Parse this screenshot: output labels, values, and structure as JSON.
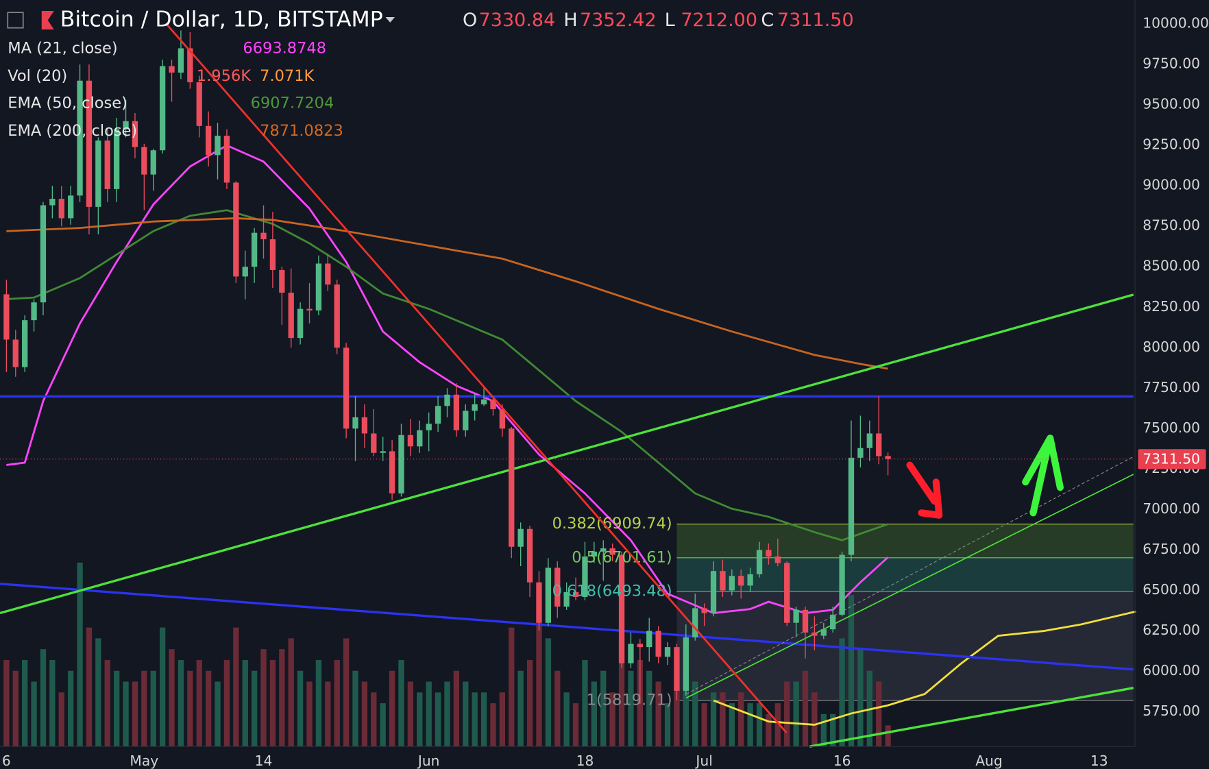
{
  "header": {
    "title": "Bitcoin / Dollar, 1D, BITSTAMP",
    "ohlc": [
      {
        "key": "O",
        "value": "7330.84"
      },
      {
        "key": "H",
        "value": "7352.42"
      },
      {
        "key": "L",
        "value": "7212.00"
      },
      {
        "key": "C",
        "value": "7311.50"
      }
    ]
  },
  "indicators": [
    {
      "name": "MA (21, close)",
      "values": [
        "6693.8748"
      ],
      "colors": [
        "#ff44ff"
      ]
    },
    {
      "name": "Vol (20)",
      "values": [
        "1.956K",
        "7.071K"
      ],
      "colors": [
        "#ff5a5a",
        "#ff9d3c"
      ]
    },
    {
      "name": "EMA (50, close)",
      "values": [
        "6907.7204"
      ],
      "colors": [
        "#4d9a3a"
      ]
    },
    {
      "name": "EMA (200, close)",
      "values": [
        "7871.0823"
      ],
      "colors": [
        "#d2691e"
      ]
    }
  ],
  "chart_data": {
    "type": "candlestick",
    "xlim": [
      -0.7,
      122.9
    ],
    "ylim": [
      5535.6,
      10147.7
    ],
    "volume_ylim": [
      0,
      69
    ],
    "xticks": [
      {
        "value": 0,
        "label": "6"
      },
      {
        "value": 15,
        "label": "May"
      },
      {
        "value": 28,
        "label": "14"
      },
      {
        "value": 46,
        "label": "Jun"
      },
      {
        "value": 63,
        "label": "18"
      },
      {
        "value": 76,
        "label": "Jul"
      },
      {
        "value": 91,
        "label": "16"
      },
      {
        "value": 107,
        "label": "Aug"
      },
      {
        "value": 119,
        "label": "13"
      }
    ],
    "yticks": [
      {
        "value": 10000,
        "label": "10000.00"
      },
      {
        "value": 9750,
        "label": "9750.00"
      },
      {
        "value": 9500,
        "label": "9500.00"
      },
      {
        "value": 9250,
        "label": "9250.00"
      },
      {
        "value": 9000,
        "label": "9000.00"
      },
      {
        "value": 8750,
        "label": "8750.00"
      },
      {
        "value": 8500,
        "label": "8500.00"
      },
      {
        "value": 8250,
        "label": "8250.00"
      },
      {
        "value": 8000,
        "label": "8000.00"
      },
      {
        "value": 7750,
        "label": "7750.00"
      },
      {
        "value": 7500,
        "label": "7500.00"
      },
      {
        "value": 7250,
        "label": "7250.00"
      },
      {
        "value": 7000,
        "label": "7000.00"
      },
      {
        "value": 6750,
        "label": "6750.00"
      },
      {
        "value": 6500,
        "label": "6500.00"
      },
      {
        "value": 6250,
        "label": "6250.00"
      },
      {
        "value": 6000,
        "label": "6000.00"
      },
      {
        "value": 5750,
        "label": "5750.00"
      }
    ],
    "grid": true,
    "up_color": "#53b987",
    "down_color": "#eb4d5c",
    "vol_up_color": "#1f5b4d",
    "vol_down_color": "#6a2b37",
    "last_price": {
      "value": 7311.5,
      "label": "7311.50"
    },
    "candles": [
      [
        8330,
        8420,
        7850,
        8050
      ],
      [
        8050,
        8110,
        7820,
        7880
      ],
      [
        7880,
        8200,
        7850,
        8170
      ],
      [
        8170,
        8300,
        8100,
        8280
      ],
      [
        8280,
        8900,
        8200,
        8880
      ],
      [
        8880,
        9000,
        8800,
        8920
      ],
      [
        8920,
        9000,
        8750,
        8800
      ],
      [
        8800,
        9000,
        8760,
        8940
      ],
      [
        8940,
        9750,
        8900,
        9650
      ],
      [
        9650,
        9750,
        8700,
        8870
      ],
      [
        8870,
        9300,
        8700,
        9280
      ],
      [
        9280,
        9360,
        8900,
        8980
      ],
      [
        8980,
        9420,
        8900,
        9350
      ],
      [
        9350,
        9530,
        9300,
        9400
      ],
      [
        9400,
        9450,
        9170,
        9240
      ],
      [
        9240,
        9260,
        8850,
        9070
      ],
      [
        9070,
        9230,
        8970,
        9220
      ],
      [
        9220,
        9780,
        9200,
        9740
      ],
      [
        9740,
        9780,
        9520,
        9700
      ],
      [
        9700,
        9960,
        9660,
        9850
      ],
      [
        9850,
        9950,
        9600,
        9640
      ],
      [
        9640,
        9680,
        9300,
        9370
      ],
      [
        9370,
        9460,
        9120,
        9190
      ],
      [
        9190,
        9390,
        9040,
        9310
      ],
      [
        9310,
        9350,
        8980,
        9020
      ],
      [
        9020,
        9030,
        8400,
        8440
      ],
      [
        8440,
        8600,
        8300,
        8500
      ],
      [
        8500,
        8740,
        8400,
        8710
      ],
      [
        8710,
        8880,
        8550,
        8670
      ],
      [
        8670,
        8840,
        8370,
        8480
      ],
      [
        8480,
        8500,
        8140,
        8340
      ],
      [
        8340,
        8490,
        8000,
        8060
      ],
      [
        8060,
        8280,
        8020,
        8240
      ],
      [
        8240,
        8400,
        8150,
        8230
      ],
      [
        8230,
        8570,
        8200,
        8520
      ],
      [
        8520,
        8580,
        8350,
        8390
      ],
      [
        8390,
        8420,
        7960,
        8000
      ],
      [
        8000,
        8030,
        7440,
        7500
      ],
      [
        7500,
        7700,
        7300,
        7570
      ],
      [
        7570,
        7650,
        7380,
        7470
      ],
      [
        7470,
        7620,
        7330,
        7350
      ],
      [
        7350,
        7450,
        7300,
        7360
      ],
      [
        7360,
        7430,
        7060,
        7100
      ],
      [
        7100,
        7530,
        7080,
        7460
      ],
      [
        7460,
        7560,
        7330,
        7390
      ],
      [
        7390,
        7550,
        7350,
        7490
      ],
      [
        7490,
        7600,
        7360,
        7530
      ],
      [
        7530,
        7700,
        7480,
        7640
      ],
      [
        7640,
        7750,
        7570,
        7710
      ],
      [
        7710,
        7780,
        7450,
        7490
      ],
      [
        7490,
        7650,
        7450,
        7610
      ],
      [
        7610,
        7720,
        7550,
        7650
      ],
      [
        7650,
        7750,
        7640,
        7680
      ],
      [
        7680,
        7700,
        7580,
        7620
      ],
      [
        7620,
        7650,
        7450,
        7500
      ],
      [
        7500,
        7510,
        6700,
        6770
      ],
      [
        6770,
        6920,
        6650,
        6880
      ],
      [
        6880,
        6900,
        6460,
        6550
      ],
      [
        6550,
        6620,
        6250,
        6300
      ],
      [
        6300,
        6700,
        6280,
        6640
      ],
      [
        6640,
        6680,
        6330,
        6400
      ],
      [
        6400,
        6550,
        6380,
        6490
      ],
      [
        6490,
        6580,
        6440,
        6460
      ],
      [
        6460,
        6800,
        6440,
        6710
      ],
      [
        6710,
        6800,
        6670,
        6740
      ],
      [
        6740,
        6810,
        6560,
        6760
      ],
      [
        6760,
        6790,
        6680,
        6720
      ],
      [
        6720,
        6740,
        6020,
        6050
      ],
      [
        6050,
        6240,
        6020,
        6170
      ],
      [
        6170,
        6200,
        5800,
        6150
      ],
      [
        6150,
        6330,
        6060,
        6250
      ],
      [
        6250,
        6280,
        6050,
        6090
      ],
      [
        6090,
        6180,
        6040,
        6150
      ],
      [
        6150,
        6170,
        5820,
        5880
      ],
      [
        5880,
        6290,
        5850,
        6210
      ],
      [
        6210,
        6480,
        6190,
        6390
      ],
      [
        6390,
        6420,
        6280,
        6360
      ],
      [
        6360,
        6680,
        6340,
        6620
      ],
      [
        6620,
        6690,
        6460,
        6500
      ],
      [
        6500,
        6630,
        6470,
        6590
      ],
      [
        6590,
        6630,
        6450,
        6530
      ],
      [
        6530,
        6640,
        6490,
        6600
      ],
      [
        6600,
        6800,
        6580,
        6750
      ],
      [
        6750,
        6790,
        6660,
        6710
      ],
      [
        6710,
        6820,
        6650,
        6670
      ],
      [
        6670,
        6680,
        6280,
        6300
      ],
      [
        6300,
        6400,
        6210,
        6380
      ],
      [
        6380,
        6400,
        6080,
        6240
      ],
      [
        6240,
        6340,
        6130,
        6220
      ],
      [
        6220,
        6300,
        6200,
        6260
      ],
      [
        6260,
        6400,
        6240,
        6350
      ],
      [
        6350,
        6740,
        6340,
        6720
      ],
      [
        6720,
        7550,
        6680,
        7320
      ],
      [
        7320,
        7580,
        7260,
        7380
      ],
      [
        7380,
        7550,
        7300,
        7470
      ],
      [
        7470,
        7700,
        7280,
        7330
      ],
      [
        7330.84,
        7352.42,
        7212,
        7311.5
      ]
    ],
    "volume": [
      8,
      7,
      8,
      6,
      9,
      8,
      5,
      7,
      17,
      11,
      10,
      8,
      7,
      6,
      6,
      7,
      7,
      11,
      9,
      8,
      7,
      8,
      7,
      6,
      8,
      11,
      8,
      7,
      9,
      8,
      9,
      10,
      7,
      6,
      8,
      6,
      8,
      10,
      7,
      6,
      5,
      4,
      7,
      8,
      6,
      5,
      6,
      5,
      6,
      7,
      6,
      5,
      5,
      4,
      5,
      11,
      7,
      8,
      12,
      10,
      7,
      5,
      4,
      8,
      6,
      7,
      5,
      10,
      7,
      8,
      7,
      6,
      4,
      8,
      7,
      6,
      4,
      5,
      5,
      4,
      5,
      4,
      4,
      3,
      4,
      6,
      6,
      7,
      5,
      3,
      3,
      10,
      14,
      9,
      7,
      6,
      1.956
    ],
    "series": [
      {
        "color": "#ff44ff",
        "x": [
          0,
          2,
          4,
          8,
          12,
          16,
          20,
          24,
          28,
          33,
          37,
          41,
          45,
          49,
          53,
          58,
          63,
          68,
          72,
          77,
          81,
          83,
          87,
          90,
          93,
          96
        ],
        "values": [
          7275,
          7290,
          7670,
          8150,
          8530,
          8885,
          9120,
          9250,
          9150,
          8860,
          8530,
          8100,
          7910,
          7765,
          7670,
          7340,
          7100,
          6810,
          6480,
          6360,
          6385,
          6430,
          6360,
          6380,
          6550,
          6705
        ]
      },
      {
        "color": "#3f8a32",
        "x": [
          0,
          3,
          8,
          12,
          16,
          20,
          24,
          29,
          33,
          37,
          41,
          46,
          50,
          54,
          58,
          62,
          67,
          71,
          75,
          79,
          83,
          88,
          91,
          96
        ],
        "values": [
          8300,
          8310,
          8430,
          8575,
          8720,
          8815,
          8850,
          8765,
          8645,
          8500,
          8335,
          8240,
          8145,
          8050,
          7860,
          7670,
          7480,
          7290,
          7100,
          7005,
          6955,
          6860,
          6810,
          6910
        ]
      },
      {
        "color": "#c8651e",
        "x": [
          0,
          8,
          16,
          25,
          29,
          37,
          46,
          54,
          62,
          71,
          79,
          88,
          93,
          96
        ],
        "values": [
          8720,
          8740,
          8780,
          8800,
          8790,
          8720,
          8630,
          8550,
          8410,
          8240,
          8100,
          7955,
          7900,
          7870
        ]
      },
      {
        "color": "#f2e03a",
        "x": [
          77,
          83,
          88,
          92,
          96,
          100,
          104,
          108,
          113,
          117,
          123
        ],
        "values": [
          5820,
          5690,
          5670,
          5740,
          5790,
          5860,
          6050,
          6220,
          6250,
          6290,
          6370
        ]
      }
    ],
    "fib": {
      "start": 73,
      "levels": [
        {
          "value": 6909.74,
          "label": "0.382(6909.74)",
          "color": "#b8d14a",
          "fill": "#2f4a2a"
        },
        {
          "value": 6701.61,
          "label": "0.5(6701.61)",
          "color": "#72c95a",
          "fill": "#1f4a45"
        },
        {
          "value": 6493.48,
          "label": "0.618(6493.48)",
          "color": "#3fbfa8",
          "fill": "#2c303d"
        },
        {
          "value": 5819.71,
          "label": "1(5819.71)",
          "color": "#8a8a8a"
        }
      ]
    }
  }
}
